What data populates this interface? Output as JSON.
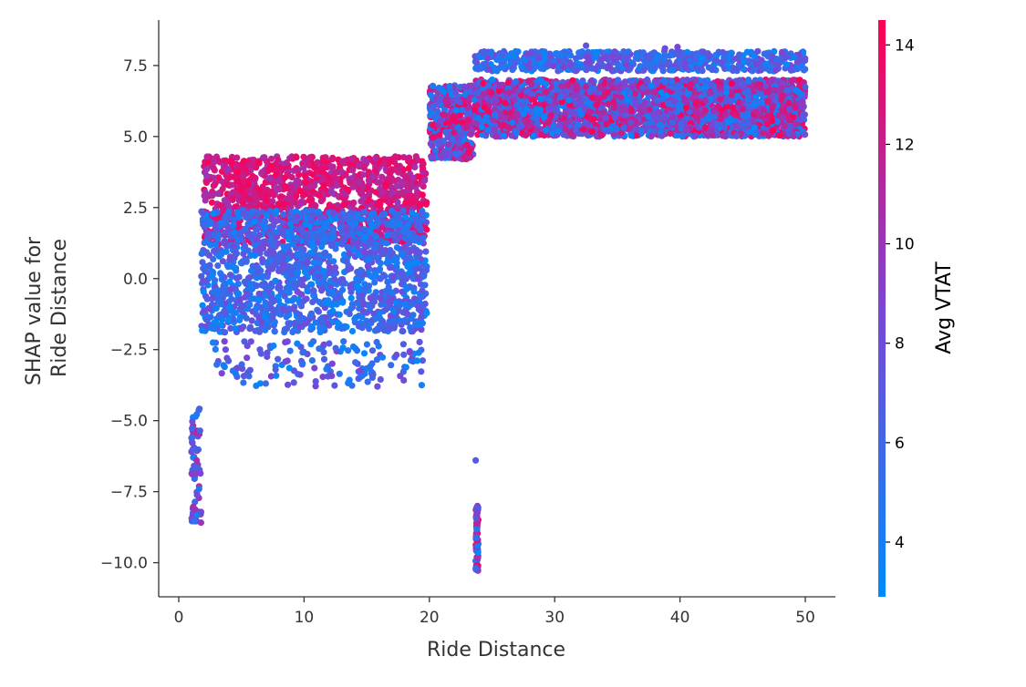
{
  "chart_data": {
    "type": "scatter",
    "title": "",
    "xlabel": "Ride Distance",
    "ylabel_lines": [
      "SHAP value for",
      "Ride Distance"
    ],
    "xlim": [
      -1.6,
      52.4
    ],
    "ylim": [
      -11.2,
      9.1
    ],
    "x_ticks": [
      0,
      10,
      20,
      30,
      40,
      50
    ],
    "x_tick_labels": [
      "0",
      "10",
      "20",
      "30",
      "40",
      "50"
    ],
    "y_ticks": [
      -10.0,
      -7.5,
      -5.0,
      -2.5,
      0.0,
      2.5,
      5.0,
      7.5
    ],
    "y_tick_labels": [
      "−10.0",
      "−7.5",
      "−5.0",
      "−2.5",
      "0.0",
      "2.5",
      "5.0",
      "7.5"
    ],
    "grid": false,
    "color_feature": "Avg VTAT",
    "colorbar": {
      "label": "Avg VTAT",
      "range": [
        2.9,
        14.5
      ],
      "ticks": [
        4,
        6,
        8,
        10,
        12,
        14
      ],
      "tick_labels": [
        "4",
        "6",
        "8",
        "10",
        "12",
        "14"
      ],
      "colors": {
        "low": "#008bfb",
        "mid": "#7b45d6",
        "high": "#ff0052"
      }
    },
    "clusters": [
      {
        "name": "short-distance band, high Avg VTAT",
        "x": [
          2.0,
          19.8
        ],
        "y": [
          1.2,
          4.3
        ],
        "vtat": [
          10,
          14.5
        ],
        "count": 1300
      },
      {
        "name": "short-distance band, low Avg VTAT",
        "x": [
          1.8,
          19.8
        ],
        "y": [
          -1.9,
          2.4
        ],
        "vtat": [
          3,
          8.5
        ],
        "count": 1500
      },
      {
        "name": "short-distance sparse low tail",
        "x": [
          2.0,
          19.5
        ],
        "y": [
          -3.8,
          -2.2
        ],
        "vtat": [
          3,
          9
        ],
        "count": 150
      },
      {
        "name": "very short rides",
        "x": [
          1.0,
          1.8
        ],
        "y": [
          -8.6,
          -4.5
        ],
        "vtat": [
          3,
          11
        ],
        "count": 70
      },
      {
        "name": "transition band",
        "x": [
          20.0,
          23.5
        ],
        "y": [
          4.2,
          6.8
        ],
        "vtat": [
          3,
          14.5
        ],
        "count": 450
      },
      {
        "name": "long-distance band",
        "x": [
          23.6,
          50
        ],
        "y": [
          5.0,
          7.0
        ],
        "vtat": [
          3,
          14.5
        ],
        "count": 3000
      },
      {
        "name": "long-distance upper band",
        "x": [
          23.6,
          50
        ],
        "y": [
          7.3,
          8.0
        ],
        "vtat": [
          3,
          9
        ],
        "count": 650
      },
      {
        "name": "vertical outlier column",
        "x": [
          23.7,
          23.9
        ],
        "y": [
          -10.3,
          -8.0
        ],
        "vtat": [
          3,
          14.5
        ],
        "count": 80
      }
    ],
    "outliers": [
      {
        "x": 23.7,
        "y": -6.4,
        "vtat": 7
      },
      {
        "x": 32.5,
        "y": 8.2,
        "vtat": 7.5
      },
      {
        "x": 38.8,
        "y": 8.1,
        "vtat": 8
      },
      {
        "x": 39.8,
        "y": 8.15,
        "vtat": 8.5
      }
    ]
  }
}
